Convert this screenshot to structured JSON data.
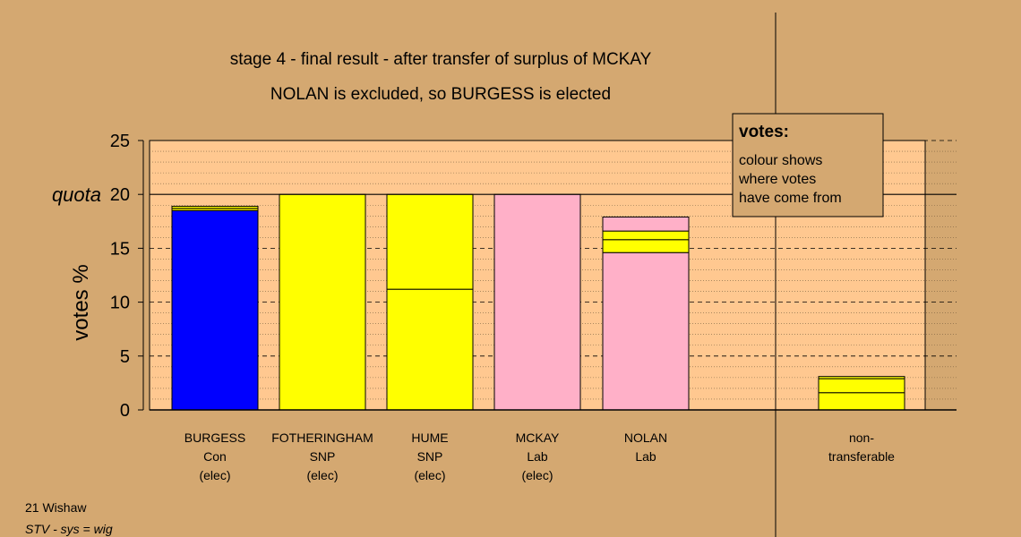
{
  "title_line1": "stage 4 - final result - after transfer of surplus of MCKAY",
  "title_line2": "NOLAN is excluded, so BURGESS is elected",
  "ylabel": "votes %",
  "quota_label": "quota",
  "legend": {
    "title": "votes:",
    "lines": [
      "colour shows",
      "where votes",
      "have come from"
    ]
  },
  "footer": {
    "line1": "21 Wishaw",
    "line2": "STV - sys = wig"
  },
  "chart_data": {
    "type": "bar",
    "stacked": true,
    "ylim": [
      0,
      25
    ],
    "yticks": [
      0,
      5,
      10,
      15,
      20,
      25
    ],
    "quota": 20,
    "grid": true,
    "legend_placement": "top-right",
    "colors": {
      "blue": "#0000ff",
      "yellow": "#ffff00",
      "pink": "#ffb0c8",
      "plot_bg": "#ffc890",
      "page_bg": "#d4a871"
    },
    "categories": [
      {
        "lines": [
          "BURGESS",
          "Con",
          "(elec)"
        ],
        "segments": [
          {
            "value": 18.5,
            "color": "blue"
          },
          {
            "value": 0.2,
            "color": "yellow"
          },
          {
            "value": 0.2,
            "color": "yellow"
          }
        ]
      },
      {
        "lines": [
          "FOTHERINGHAM",
          "SNP",
          "(elec)"
        ],
        "segments": [
          {
            "value": 20.0,
            "color": "yellow"
          }
        ]
      },
      {
        "lines": [
          "HUME",
          "SNP",
          "(elec)"
        ],
        "segments": [
          {
            "value": 11.2,
            "color": "yellow"
          },
          {
            "value": 8.8,
            "color": "yellow"
          }
        ]
      },
      {
        "lines": [
          "MCKAY",
          "Lab",
          "(elec)"
        ],
        "segments": [
          {
            "value": 20.0,
            "color": "pink"
          }
        ]
      },
      {
        "lines": [
          "NOLAN",
          "Lab"
        ],
        "segments": [
          {
            "value": 14.6,
            "color": "pink"
          },
          {
            "value": 1.2,
            "color": "yellow"
          },
          {
            "value": 0.8,
            "color": "yellow"
          },
          {
            "value": 1.3,
            "color": "pink"
          }
        ]
      },
      {
        "lines": [
          "non-",
          "transferable"
        ],
        "segments": [
          {
            "value": 1.6,
            "color": "yellow"
          },
          {
            "value": 1.3,
            "color": "yellow"
          },
          {
            "value": 0.2,
            "color": "yellow"
          }
        ]
      }
    ]
  }
}
